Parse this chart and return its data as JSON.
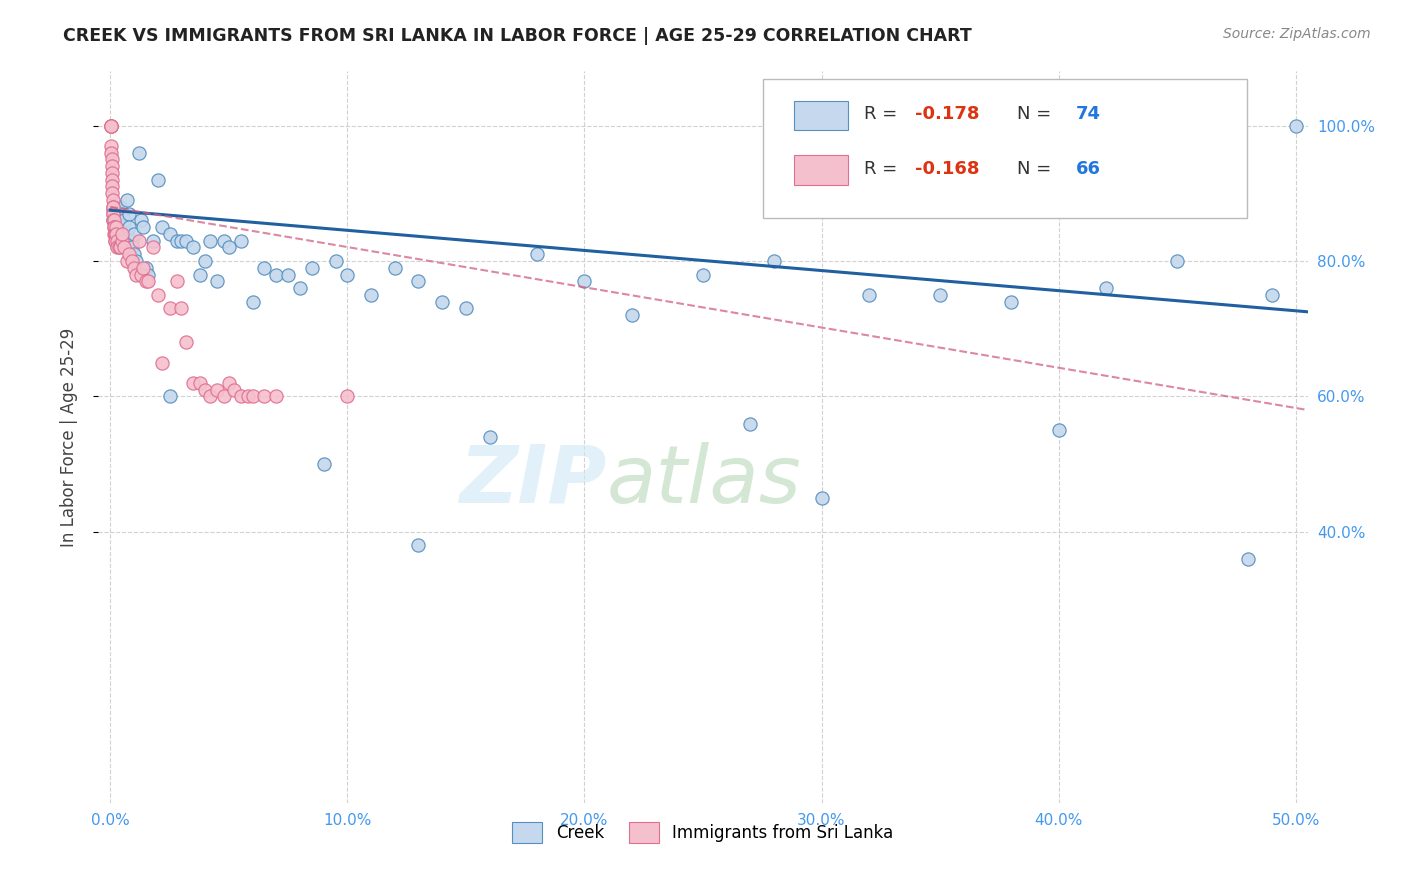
{
  "title": "CREEK VS IMMIGRANTS FROM SRI LANKA IN LABOR FORCE | AGE 25-29 CORRELATION CHART",
  "source": "Source: ZipAtlas.com",
  "ylabel": "In Labor Force | Age 25-29",
  "xlim": [
    -0.005,
    0.505
  ],
  "ylim": [
    0.0,
    1.08
  ],
  "xticks": [
    0.0,
    0.1,
    0.2,
    0.3,
    0.4,
    0.5
  ],
  "xticklabels": [
    "0.0%",
    "10.0%",
    "20.0%",
    "30.0%",
    "40.0%",
    "50.0%"
  ],
  "yticks": [
    0.4,
    0.6,
    0.8,
    1.0
  ],
  "yticklabels": [
    "40.0%",
    "60.0%",
    "80.0%",
    "100.0%"
  ],
  "blue_face": "#c5d8ed",
  "blue_edge": "#5590c0",
  "pink_face": "#f5c0ce",
  "pink_edge": "#e07090",
  "blue_line": "#2060a0",
  "pink_line": "#d06080",
  "blue_scatter_x": [
    0.001,
    0.001,
    0.002,
    0.002,
    0.003,
    0.003,
    0.004,
    0.004,
    0.005,
    0.005,
    0.006,
    0.006,
    0.007,
    0.007,
    0.008,
    0.008,
    0.009,
    0.009,
    0.01,
    0.01,
    0.011,
    0.012,
    0.013,
    0.014,
    0.015,
    0.016,
    0.018,
    0.02,
    0.022,
    0.025,
    0.025,
    0.028,
    0.03,
    0.032,
    0.035,
    0.038,
    0.04,
    0.042,
    0.045,
    0.048,
    0.05,
    0.055,
    0.06,
    0.065,
    0.07,
    0.075,
    0.08,
    0.085,
    0.09,
    0.095,
    0.1,
    0.11,
    0.12,
    0.13,
    0.14,
    0.15,
    0.16,
    0.18,
    0.2,
    0.22,
    0.25,
    0.28,
    0.3,
    0.32,
    0.35,
    0.38,
    0.4,
    0.42,
    0.45,
    0.48,
    0.49,
    0.5,
    0.13,
    0.27
  ],
  "blue_scatter_y": [
    0.875,
    0.86,
    0.88,
    0.85,
    0.84,
    0.87,
    0.86,
    0.88,
    0.87,
    0.83,
    0.85,
    0.86,
    0.89,
    0.84,
    0.87,
    0.85,
    0.83,
    0.82,
    0.84,
    0.81,
    0.8,
    0.96,
    0.86,
    0.85,
    0.79,
    0.78,
    0.83,
    0.92,
    0.85,
    0.84,
    0.6,
    0.83,
    0.83,
    0.83,
    0.82,
    0.78,
    0.8,
    0.83,
    0.77,
    0.83,
    0.82,
    0.83,
    0.74,
    0.79,
    0.78,
    0.78,
    0.76,
    0.79,
    0.5,
    0.8,
    0.78,
    0.75,
    0.79,
    0.77,
    0.74,
    0.73,
    0.54,
    0.81,
    0.77,
    0.72,
    0.78,
    0.8,
    0.45,
    0.75,
    0.75,
    0.74,
    0.55,
    0.76,
    0.8,
    0.36,
    0.75,
    1.0,
    0.38,
    0.56
  ],
  "pink_scatter_x": [
    0.0003,
    0.0003,
    0.0004,
    0.0004,
    0.0005,
    0.0005,
    0.0006,
    0.0006,
    0.0007,
    0.0008,
    0.0008,
    0.0009,
    0.001,
    0.001,
    0.0011,
    0.0011,
    0.0012,
    0.0013,
    0.0014,
    0.0015,
    0.0016,
    0.0017,
    0.0018,
    0.002,
    0.002,
    0.0022,
    0.0023,
    0.0025,
    0.003,
    0.003,
    0.0035,
    0.004,
    0.005,
    0.005,
    0.006,
    0.007,
    0.008,
    0.009,
    0.01,
    0.011,
    0.012,
    0.013,
    0.014,
    0.015,
    0.016,
    0.018,
    0.02,
    0.022,
    0.025,
    0.028,
    0.03,
    0.032,
    0.035,
    0.038,
    0.04,
    0.042,
    0.045,
    0.048,
    0.05,
    0.052,
    0.055,
    0.058,
    0.06,
    0.065,
    0.07,
    0.1
  ],
  "pink_scatter_y": [
    1.0,
    1.0,
    1.0,
    1.0,
    0.97,
    0.96,
    0.95,
    0.94,
    0.93,
    0.92,
    0.91,
    0.9,
    0.89,
    0.88,
    0.88,
    0.87,
    0.87,
    0.86,
    0.86,
    0.85,
    0.85,
    0.84,
    0.84,
    0.84,
    0.83,
    0.83,
    0.85,
    0.84,
    0.83,
    0.82,
    0.82,
    0.82,
    0.83,
    0.84,
    0.82,
    0.8,
    0.81,
    0.8,
    0.79,
    0.78,
    0.83,
    0.78,
    0.79,
    0.77,
    0.77,
    0.82,
    0.75,
    0.65,
    0.73,
    0.77,
    0.73,
    0.68,
    0.62,
    0.62,
    0.61,
    0.6,
    0.61,
    0.6,
    0.62,
    0.61,
    0.6,
    0.6,
    0.6,
    0.6,
    0.6,
    0.6
  ],
  "blue_trend_x0": 0.0,
  "blue_trend_x1": 0.505,
  "blue_trend_y0": 0.875,
  "blue_trend_y1": 0.725,
  "pink_trend_x0": 0.0,
  "pink_trend_x1": 0.505,
  "pink_trend_y0": 0.88,
  "pink_trend_y1": 0.58,
  "legend_r_blue": "-0.178",
  "legend_n_blue": "74",
  "legend_r_pink": "-0.168",
  "legend_n_pink": "66"
}
